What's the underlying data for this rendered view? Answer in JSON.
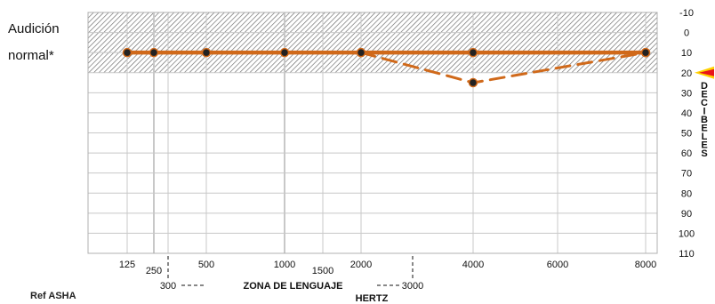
{
  "labels": {
    "normal_line1": "Audición",
    "normal_line2": "normal*",
    "reference": "Ref ASHA"
  },
  "colors": {
    "series": "#d0691a",
    "marker": "#e8141a",
    "grid": "#c8c8c8",
    "hatch": "#666666"
  },
  "chart_data": {
    "type": "line",
    "title": "",
    "xlabel": "HERTZ",
    "ylabel": "DECIBELES",
    "x_ticks": [
      "125",
      "250",
      "300",
      "500",
      "1000",
      "1500",
      "2000",
      "3000",
      "4000",
      "6000",
      "8000"
    ],
    "y_ticks": [
      "-10",
      "0",
      "10",
      "20",
      "30",
      "40",
      "50",
      "60",
      "70",
      "80",
      "90",
      "100",
      "110"
    ],
    "ylim": [
      -10,
      110
    ],
    "y_inverted": true,
    "normal_hearing_range": [
      -10,
      20
    ],
    "speech_zone": {
      "label": "ZONA DE LENGUAJE",
      "from": 300,
      "to": 3000
    },
    "reference_marker_db": 20,
    "grid": true,
    "series": [
      {
        "style": "solid",
        "x": [
          125,
          250,
          500,
          1000,
          2000,
          4000,
          8000
        ],
        "y": [
          10,
          10,
          10,
          10,
          10,
          10,
          10
        ]
      },
      {
        "style": "dashed",
        "x": [
          2000,
          4000,
          8000
        ],
        "y": [
          10,
          25,
          10
        ]
      }
    ]
  }
}
